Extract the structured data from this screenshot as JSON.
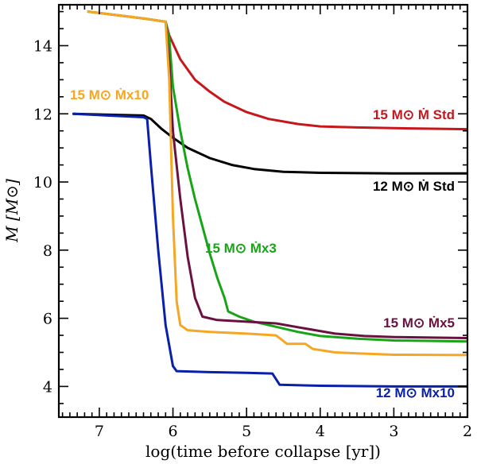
{
  "chart_data": {
    "type": "line",
    "title": "",
    "xlabel": "log(time before collapse [yr])",
    "ylabel": "M  [M⊙]",
    "xlim": [
      7.55,
      2.0
    ],
    "ylim": [
      3.1,
      15.2
    ],
    "xticks": [
      7,
      6,
      5,
      4,
      3,
      2
    ],
    "yticks": [
      4,
      6,
      8,
      10,
      12,
      14
    ],
    "xtick_labels": [
      "7",
      "6",
      "5",
      "4",
      "3",
      "2"
    ],
    "ytick_labels": [
      "4",
      "6",
      "8",
      "10",
      "12",
      "14"
    ],
    "series": [
      {
        "name": "15 M⊙ Ṁ Std",
        "label": "15 M⊙ Ṁ Std",
        "color": "#c8161d",
        "points": [
          [
            7.15,
            15.0
          ],
          [
            6.4,
            14.8
          ],
          [
            6.1,
            14.7
          ],
          [
            6.05,
            14.3
          ],
          [
            5.9,
            13.6
          ],
          [
            5.7,
            13.0
          ],
          [
            5.5,
            12.65
          ],
          [
            5.3,
            12.35
          ],
          [
            5.0,
            12.05
          ],
          [
            4.7,
            11.85
          ],
          [
            4.3,
            11.7
          ],
          [
            4.0,
            11.63
          ],
          [
            3.5,
            11.6
          ],
          [
            3.0,
            11.58
          ],
          [
            2.0,
            11.55
          ]
        ]
      },
      {
        "name": "12 M⊙ Ṁ Std",
        "label": "12 M⊙ Ṁ Std",
        "color": "#000000",
        "points": [
          [
            7.35,
            12.0
          ],
          [
            6.4,
            11.95
          ],
          [
            6.3,
            11.85
          ],
          [
            6.15,
            11.55
          ],
          [
            6.0,
            11.3
          ],
          [
            5.8,
            11.0
          ],
          [
            5.5,
            10.7
          ],
          [
            5.2,
            10.5
          ],
          [
            4.9,
            10.38
          ],
          [
            4.5,
            10.3
          ],
          [
            4.0,
            10.27
          ],
          [
            3.0,
            10.25
          ],
          [
            2.0,
            10.25
          ]
        ]
      },
      {
        "name": "15 M⊙ Ṁx3",
        "label": "15 M⊙ Ṁx3",
        "color": "#17a517",
        "points": [
          [
            7.15,
            15.0
          ],
          [
            6.4,
            14.8
          ],
          [
            6.1,
            14.7
          ],
          [
            6.05,
            14.2
          ],
          [
            6.0,
            12.8
          ],
          [
            5.9,
            11.5
          ],
          [
            5.8,
            10.4
          ],
          [
            5.7,
            9.5
          ],
          [
            5.6,
            8.7
          ],
          [
            5.5,
            7.9
          ],
          [
            5.4,
            7.2
          ],
          [
            5.3,
            6.6
          ],
          [
            5.25,
            6.2
          ],
          [
            5.1,
            6.05
          ],
          [
            4.9,
            5.9
          ],
          [
            4.6,
            5.75
          ],
          [
            4.3,
            5.6
          ],
          [
            4.0,
            5.48
          ],
          [
            3.5,
            5.4
          ],
          [
            3.0,
            5.35
          ],
          [
            2.0,
            5.32
          ]
        ]
      },
      {
        "name": "15 M⊙ Ṁx5",
        "label": "15 M⊙ Ṁx5",
        "color": "#6b1141",
        "points": [
          [
            6.1,
            14.7
          ],
          [
            6.05,
            13.5
          ],
          [
            6.0,
            11.5
          ],
          [
            5.9,
            9.5
          ],
          [
            5.8,
            7.8
          ],
          [
            5.7,
            6.6
          ],
          [
            5.6,
            6.05
          ],
          [
            5.4,
            5.95
          ],
          [
            5.0,
            5.9
          ],
          [
            4.6,
            5.85
          ],
          [
            4.2,
            5.7
          ],
          [
            3.8,
            5.55
          ],
          [
            3.4,
            5.48
          ],
          [
            3.0,
            5.45
          ],
          [
            2.0,
            5.42
          ]
        ]
      },
      {
        "name": "15 M⊙ Ṁx10",
        "label": "15 M⊙ Ṁx10",
        "color": "#f5a623",
        "points": [
          [
            7.15,
            15.0
          ],
          [
            6.4,
            14.8
          ],
          [
            6.1,
            14.7
          ],
          [
            6.05,
            13.0
          ],
          [
            6.0,
            9.0
          ],
          [
            5.95,
            6.5
          ],
          [
            5.9,
            5.8
          ],
          [
            5.8,
            5.65
          ],
          [
            5.5,
            5.6
          ],
          [
            5.0,
            5.55
          ],
          [
            4.6,
            5.5
          ],
          [
            4.45,
            5.25
          ],
          [
            4.2,
            5.25
          ],
          [
            4.1,
            5.1
          ],
          [
            3.8,
            5.0
          ],
          [
            3.5,
            4.97
          ],
          [
            3.0,
            4.93
          ],
          [
            2.0,
            4.92
          ]
        ]
      },
      {
        "name": "12 M⊙ Ṁx10",
        "label": "12 M⊙ Ṁx10",
        "color": "#0a1faa",
        "points": [
          [
            7.35,
            12.0
          ],
          [
            6.4,
            11.9
          ],
          [
            6.35,
            11.85
          ],
          [
            6.3,
            10.5
          ],
          [
            6.2,
            8.0
          ],
          [
            6.1,
            5.8
          ],
          [
            6.0,
            4.6
          ],
          [
            5.95,
            4.45
          ],
          [
            5.5,
            4.42
          ],
          [
            5.0,
            4.4
          ],
          [
            4.65,
            4.38
          ],
          [
            4.55,
            4.05
          ],
          [
            4.0,
            4.02
          ],
          [
            3.0,
            4.0
          ],
          [
            2.0,
            4.0
          ]
        ]
      }
    ]
  }
}
